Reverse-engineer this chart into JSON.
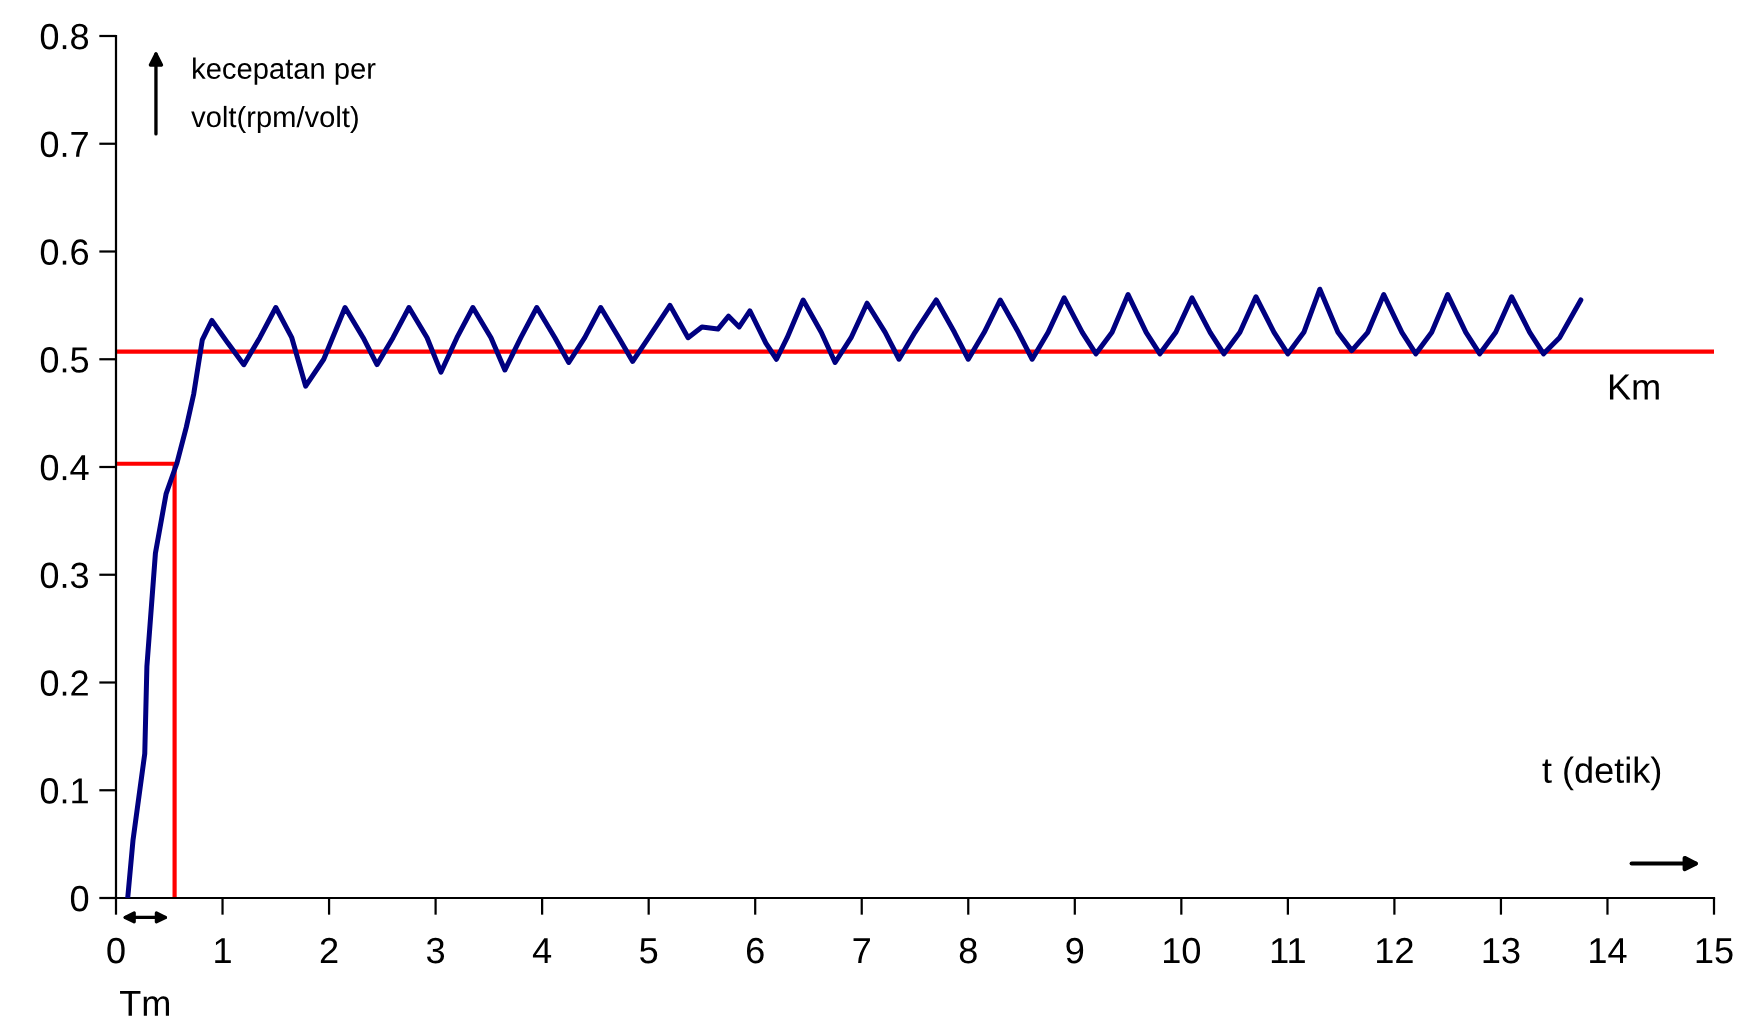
{
  "chart_data": {
    "type": "line",
    "xlabel": "t (detik)",
    "ylabel": "kecepatan per\nvolt(rpm/volt)",
    "xlim": [
      0,
      15
    ],
    "ylim": [
      0,
      0.8
    ],
    "xticks": [
      0,
      1,
      2,
      3,
      4,
      5,
      6,
      7,
      8,
      9,
      10,
      11,
      12,
      13,
      14,
      15
    ],
    "yticks": [
      0,
      0.1,
      0.2,
      0.3,
      0.4,
      0.5,
      0.6,
      0.7,
      0.8
    ],
    "grid": false,
    "series": [
      {
        "color": "#000080",
        "x": [
          0.11,
          0.16,
          0.27,
          0.29,
          0.37,
          0.47,
          0.57,
          0.66,
          0.73,
          0.81,
          0.9,
          1.05,
          1.2,
          1.35,
          1.5,
          1.65,
          1.78,
          1.95,
          2.15,
          2.32,
          2.45,
          2.6,
          2.75,
          2.92,
          3.05,
          3.2,
          3.35,
          3.52,
          3.65,
          3.8,
          3.95,
          4.12,
          4.25,
          4.4,
          4.55,
          4.72,
          4.85,
          5.0,
          5.2,
          5.37,
          5.5,
          5.65,
          5.75,
          5.85,
          5.95,
          6.1,
          6.2,
          6.3,
          6.45,
          6.62,
          6.75,
          6.9,
          7.05,
          7.22,
          7.35,
          7.5,
          7.7,
          7.87,
          8.0,
          8.15,
          8.3,
          8.47,
          8.6,
          8.75,
          8.9,
          9.07,
          9.2,
          9.35,
          9.5,
          9.67,
          9.8,
          9.95,
          10.1,
          10.27,
          10.4,
          10.55,
          10.7,
          10.87,
          11.0,
          11.15,
          11.3,
          11.47,
          11.6,
          11.75,
          11.9,
          12.07,
          12.2,
          12.35,
          12.5,
          12.67,
          12.8,
          12.95,
          13.1,
          13.27,
          13.4,
          13.55,
          13.75
        ],
        "values": [
          0,
          0.054,
          0.134,
          0.215,
          0.32,
          0.375,
          0.403,
          0.437,
          0.468,
          0.518,
          0.536,
          0.515,
          0.495,
          0.52,
          0.548,
          0.52,
          0.475,
          0.5,
          0.548,
          0.52,
          0.495,
          0.52,
          0.548,
          0.52,
          0.488,
          0.52,
          0.548,
          0.52,
          0.49,
          0.52,
          0.548,
          0.52,
          0.497,
          0.52,
          0.548,
          0.52,
          0.498,
          0.52,
          0.55,
          0.52,
          0.53,
          0.528,
          0.54,
          0.53,
          0.545,
          0.515,
          0.5,
          0.52,
          0.555,
          0.525,
          0.497,
          0.52,
          0.552,
          0.525,
          0.5,
          0.525,
          0.555,
          0.525,
          0.5,
          0.525,
          0.555,
          0.525,
          0.5,
          0.525,
          0.557,
          0.525,
          0.505,
          0.525,
          0.56,
          0.525,
          0.505,
          0.525,
          0.557,
          0.525,
          0.505,
          0.525,
          0.558,
          0.525,
          0.505,
          0.525,
          0.565,
          0.525,
          0.508,
          0.525,
          0.56,
          0.525,
          0.505,
          0.525,
          0.56,
          0.525,
          0.505,
          0.525,
          0.558,
          0.525,
          0.505,
          0.52,
          0.555
        ]
      },
      {
        "color": "#ff0000",
        "x": [
          0,
          0.55,
          0.55
        ],
        "values": [
          0.403,
          0.403,
          0
        ]
      }
    ],
    "ref_lines": [
      {
        "axis": "y",
        "value": 0.507,
        "label": "Km",
        "color": "#ff0000"
      }
    ],
    "annotations": [
      "Tm"
    ]
  }
}
